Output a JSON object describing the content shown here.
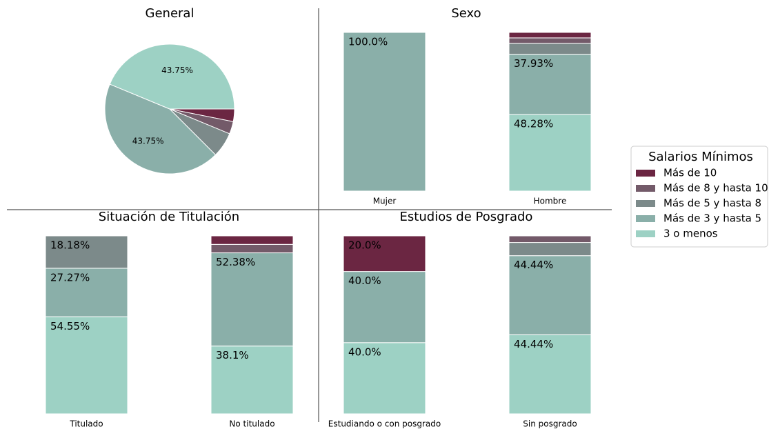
{
  "chart_data": [
    {
      "type": "pie",
      "title": "General",
      "categories": [
        "Más de 10",
        "Más de 8 y hasta 10",
        "Más de 5 y hasta 8",
        "Más de 3 y hasta 5",
        "3 o menos"
      ],
      "values": [
        3.125,
        3.125,
        6.25,
        43.75,
        43.75
      ],
      "value_labels": [
        null,
        null,
        null,
        "43.75%",
        "43.75%"
      ],
      "colors": [
        "#6b2642",
        "#735a69",
        "#7c8a8a",
        "#8aafa9",
        "#9dd1c4"
      ]
    },
    {
      "type": "bar",
      "stacked": true,
      "title": "Sexo",
      "categories": [
        "Mujer",
        "Hombre"
      ],
      "ylim": [
        0,
        100
      ],
      "series": [
        {
          "name": "Más de 10",
          "color": "#6b2642",
          "values": [
            0,
            3.45
          ],
          "value_labels": [
            null,
            null
          ]
        },
        {
          "name": "Más de 8 y hasta 10",
          "color": "#735a69",
          "values": [
            0,
            3.45
          ],
          "value_labels": [
            null,
            null
          ]
        },
        {
          "name": "Más de 5 y hasta 8",
          "color": "#7c8a8a",
          "values": [
            0,
            6.9
          ],
          "value_labels": [
            null,
            null
          ]
        },
        {
          "name": "Más de 3 y hasta 5",
          "color": "#8aafa9",
          "values": [
            100,
            37.93
          ],
          "value_labels": [
            "100.0%",
            "37.93%"
          ]
        },
        {
          "name": "3 o menos",
          "color": "#9dd1c4",
          "values": [
            0,
            48.28
          ],
          "value_labels": [
            null,
            "48.28%"
          ]
        }
      ]
    },
    {
      "type": "bar",
      "stacked": true,
      "title": "Situación de Titulación",
      "categories": [
        "Titulado",
        "No titulado"
      ],
      "ylim": [
        0,
        100
      ],
      "series": [
        {
          "name": "Más de 10",
          "color": "#6b2642",
          "values": [
            0,
            4.76
          ],
          "value_labels": [
            null,
            null
          ]
        },
        {
          "name": "Más de 8 y hasta 10",
          "color": "#735a69",
          "values": [
            0,
            4.76
          ],
          "value_labels": [
            null,
            null
          ]
        },
        {
          "name": "Más de 5 y hasta 8",
          "color": "#7c8a8a",
          "values": [
            18.18,
            0
          ],
          "value_labels": [
            "18.18%",
            null
          ]
        },
        {
          "name": "Más de 3 y hasta 5",
          "color": "#8aafa9",
          "values": [
            27.27,
            52.38
          ],
          "value_labels": [
            "27.27%",
            "52.38%"
          ]
        },
        {
          "name": "3 o menos",
          "color": "#9dd1c4",
          "values": [
            54.55,
            38.1
          ],
          "value_labels": [
            "54.55%",
            "38.1%"
          ]
        }
      ]
    },
    {
      "type": "bar",
      "stacked": true,
      "title": "Estudios de Posgrado",
      "categories": [
        "Estudiando o con posgrado",
        "Sin posgrado"
      ],
      "ylim": [
        0,
        100
      ],
      "series": [
        {
          "name": "Más de 10",
          "color": "#6b2642",
          "values": [
            20,
            0
          ],
          "value_labels": [
            "20.0%",
            null
          ]
        },
        {
          "name": "Más de 8 y hasta 10",
          "color": "#735a69",
          "values": [
            0,
            3.7
          ],
          "value_labels": [
            null,
            null
          ]
        },
        {
          "name": "Más de 5 y hasta 8",
          "color": "#7c8a8a",
          "values": [
            0,
            7.41
          ],
          "value_labels": [
            null,
            null
          ]
        },
        {
          "name": "Más de 3 y hasta 5",
          "color": "#8aafa9",
          "values": [
            40,
            44.44
          ],
          "value_labels": [
            "40.0%",
            "44.44%"
          ]
        },
        {
          "name": "3 o menos",
          "color": "#9dd1c4",
          "values": [
            40,
            44.44
          ],
          "value_labels": [
            "40.0%",
            "44.44%"
          ]
        }
      ]
    }
  ],
  "legend": {
    "title": "Salarios Mínimos"
  }
}
